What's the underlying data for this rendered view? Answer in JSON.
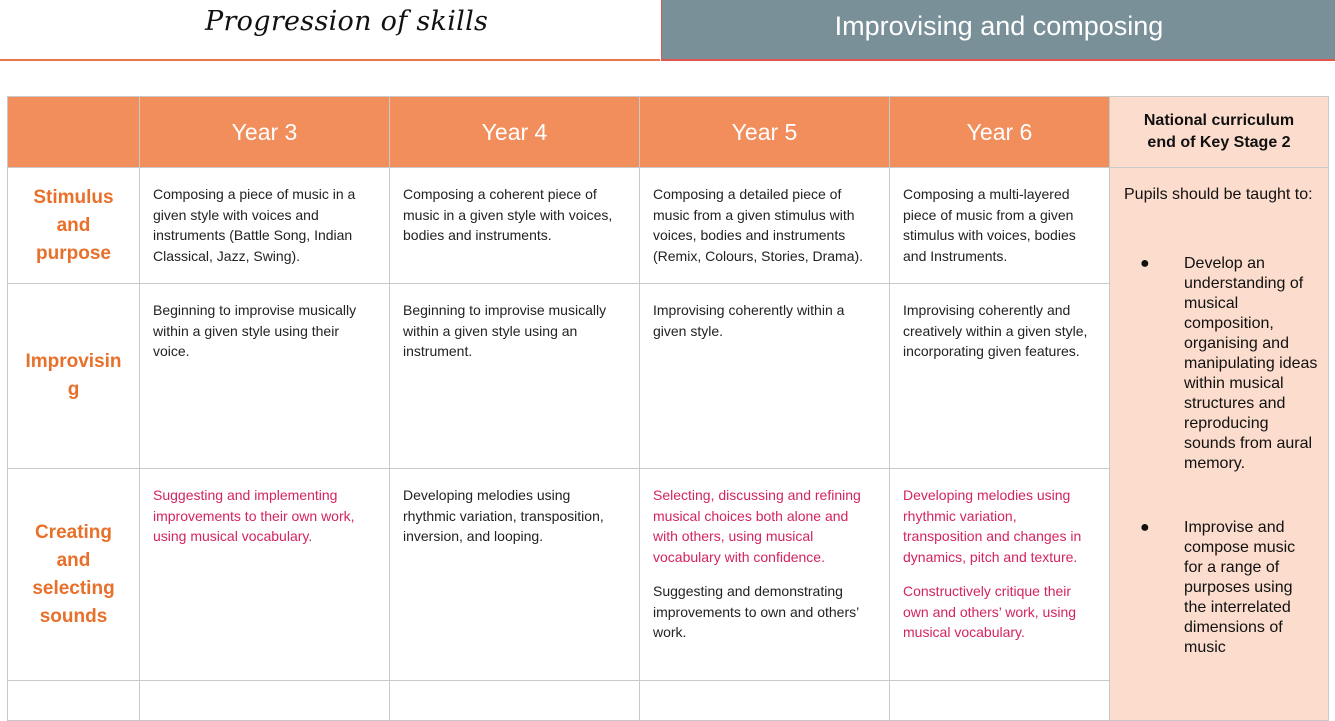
{
  "header": {
    "left_title": "Progression of skills",
    "right_title": "Improvising and composing"
  },
  "columns": [
    "Year 3",
    "Year 4",
    "Year 5",
    "Year 6"
  ],
  "national_curriculum": {
    "title_line1": "National curriculum",
    "title_line2": "end of Key Stage 2",
    "intro": "Pupils should be taught to:",
    "bullets": [
      "Develop an understanding of musical composition, organising and manipulating ideas within musical structures and reproducing sounds from aural memory.",
      "Improvise and compose music for a range of purposes using the interrelated dimensions of music"
    ]
  },
  "rows": [
    {
      "heading_lines": [
        "Stimulus",
        "and",
        "purpose"
      ],
      "cells": [
        [
          {
            "text": "Composing a piece of music in a given style with voices and instruments (Battle Song, Indian Classical, Jazz, Swing).",
            "pink": false
          }
        ],
        [
          {
            "text": "Composing a coherent piece of music in a given style with voices, bodies and instruments.",
            "pink": false
          }
        ],
        [
          {
            "text": "Composing a detailed piece of music from a given stimulus with voices, bodies and instruments (Remix, Colours, Stories, Drama).",
            "pink": false
          }
        ],
        [
          {
            "text": "Composing a multi-layered piece of music from a given stimulus with voices, bodies and Instruments.",
            "pink": false
          }
        ]
      ]
    },
    {
      "heading_lines": [
        "Improvisin",
        "g"
      ],
      "cells": [
        [
          {
            "text": "Beginning to improvise musically within a given style using their voice.",
            "pink": false
          }
        ],
        [
          {
            "text": "Beginning to improvise musically within a given style using an instrument.",
            "pink": false
          }
        ],
        [
          {
            "text": "Improvising coherently within a given style.",
            "pink": false
          }
        ],
        [
          {
            "text": "Improvising coherently and creatively within a given style,  incorporating given features.",
            "pink": false
          }
        ]
      ]
    },
    {
      "heading_lines": [
        "Creating",
        "and",
        "selecting",
        "sounds"
      ],
      "cells": [
        [
          {
            "text": "Suggesting and implementing improvements to their own work, using musical vocabulary.",
            "pink": true
          }
        ],
        [
          {
            "text": "Developing melodies using rhythmic variation, transposition, inversion, and looping.",
            "pink": false
          }
        ],
        [
          {
            "text": "Selecting, discussing and refining musical choices both alone and with others, using musical vocabulary with confidence.",
            "pink": true
          },
          {
            "text": "Suggesting and demonstrating improvements to own and others’ work.",
            "pink": false
          }
        ],
        [
          {
            "text": "Developing melodies using rhythmic variation, transposition and changes in dynamics, pitch and texture.",
            "pink": true
          },
          {
            "text": "Constructively critique their own and others’ work, using musical vocabulary.",
            "pink": true
          }
        ]
      ]
    }
  ]
}
